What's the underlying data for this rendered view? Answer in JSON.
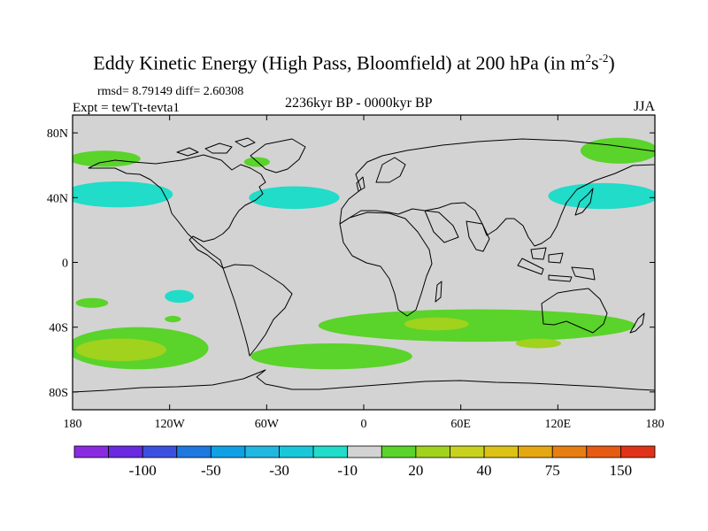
{
  "title": {
    "main": "Eddy Kinetic Energy (High Pass, Bloomfield) at 200 hPa (in m",
    "sup1": "2",
    "mid": "s",
    "sup2": "-2",
    "end": ")"
  },
  "stats": "rmsd= 8.79149 diff= 2.60308",
  "experiment": "Expt = tewTt-tevta1",
  "period": "2236kyr BP - 0000kyr BP",
  "season": "JJA",
  "axes": {
    "lat_labels": [
      "80N",
      "40N",
      "0",
      "40S",
      "80S"
    ],
    "lat_values": [
      80,
      40,
      0,
      -40,
      -80
    ],
    "lon_labels": [
      "180",
      "120W",
      "60W",
      "0",
      "60E",
      "120E",
      "180"
    ],
    "lon_values": [
      -180,
      -120,
      -60,
      0,
      60,
      120,
      180
    ]
  },
  "colorbar": {
    "colors": [
      "#8a2be2",
      "#6a2adf",
      "#3c50e0",
      "#1e78e0",
      "#10a0e6",
      "#20b8e0",
      "#18c8d8",
      "#20dcc8",
      "#d3d3d3",
      "#5ad32a",
      "#a0d21e",
      "#c8d21e",
      "#dcc214",
      "#e6a812",
      "#e67e14",
      "#e65a14",
      "#e03218"
    ],
    "labels": [
      "-100",
      "-50",
      "-30",
      "-10",
      "20",
      "40",
      "75",
      "150"
    ],
    "label_boundaries": [
      2,
      4,
      6,
      8,
      10,
      12,
      14,
      16
    ]
  },
  "map": {
    "background_color": "#d3d3d3",
    "regions": [
      {
        "name": "anomaly-north-pacific-west",
        "level": "-10",
        "color": "#20dcc8",
        "lon": -152,
        "lat": 42,
        "rlon": 34,
        "rlat": 8
      },
      {
        "name": "anomaly-north-atlantic",
        "level": "-10",
        "color": "#20dcc8",
        "lon": -43,
        "lat": 40,
        "rlon": 28,
        "rlat": 7
      },
      {
        "name": "anomaly-north-pacific-east",
        "level": "-10",
        "color": "#20dcc8",
        "lon": 148,
        "lat": 41,
        "rlon": 34,
        "rlat": 8
      },
      {
        "name": "anomaly-east-pacific-south",
        "level": "-10",
        "color": "#20dcc8",
        "lon": -114,
        "lat": -21,
        "rlon": 9,
        "rlat": 4
      },
      {
        "name": "anomaly-arctic-west",
        "level": "20",
        "color": "#5ad32a",
        "lon": -160,
        "lat": 64,
        "rlon": 22,
        "rlat": 5
      },
      {
        "name": "anomaly-arctic-east",
        "level": "20",
        "color": "#5ad32a",
        "lon": 158,
        "lat": 69,
        "rlon": 24,
        "rlat": 8
      },
      {
        "name": "anomaly-labrador",
        "level": "20",
        "color": "#5ad32a",
        "lon": -66,
        "lat": 62,
        "rlon": 8,
        "rlat": 3
      },
      {
        "name": "anomaly-south-pacific-tropics",
        "level": "20",
        "color": "#5ad32a",
        "lon": -168,
        "lat": -25,
        "rlon": 10,
        "rlat": 3
      },
      {
        "name": "anomaly-east-pacific-small",
        "level": "20",
        "color": "#5ad32a",
        "lon": -118,
        "lat": -35,
        "rlon": 5,
        "rlat": 2
      },
      {
        "name": "anomaly-south-indian-belt",
        "level": "20",
        "color": "#5ad32a",
        "lon": 70,
        "lat": -39,
        "rlon": 98,
        "rlat": 10
      },
      {
        "name": "anomaly-southern-ocean-west",
        "level": "20",
        "color": "#5ad32a",
        "lon": -140,
        "lat": -53,
        "rlon": 44,
        "rlat": 13
      },
      {
        "name": "anomaly-southern-ocean-east",
        "level": "20",
        "color": "#5ad32a",
        "lon": -20,
        "lat": -58,
        "rlon": 50,
        "rlat": 8
      },
      {
        "name": "anomaly-indian-ocean-core",
        "level": "40",
        "color": "#a0d21e",
        "lon": 45,
        "lat": -38,
        "rlon": 20,
        "rlat": 4
      },
      {
        "name": "anomaly-south-pacific-core",
        "level": "40",
        "color": "#a0d21e",
        "lon": -150,
        "lat": -54,
        "rlon": 28,
        "rlat": 7
      },
      {
        "name": "anomaly-south-indian-core",
        "level": "40",
        "color": "#a0d21e",
        "lon": 108,
        "lat": -50,
        "rlon": 14,
        "rlat": 3
      }
    ]
  }
}
